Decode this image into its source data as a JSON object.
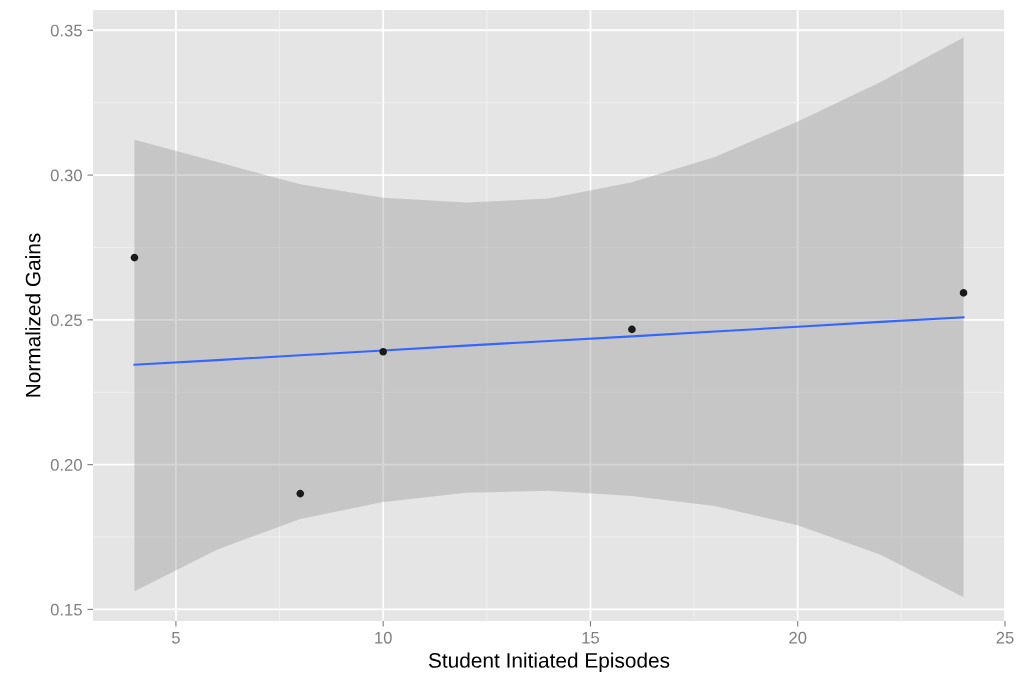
{
  "chart_data": {
    "type": "scatter",
    "xlabel": "Student Initiated Episodes",
    "ylabel": "Normalized Gains",
    "xlim": [
      3,
      25
    ],
    "ylim": [
      0.146,
      0.357
    ],
    "xticks": [
      5,
      10,
      15,
      20,
      25
    ],
    "yticks": [
      0.15,
      {
        "value": 0.2,
        "label": "0.20"
      },
      0.25,
      {
        "value": 0.3,
        "label": "0.30"
      },
      0.35
    ],
    "grid": true,
    "series": [
      {
        "marker": "circle",
        "color": "#1a1a1a",
        "x": [
          4,
          8,
          10,
          16,
          24
        ],
        "values": [
          0.2715,
          0.19,
          0.239,
          0.2467,
          0.2593
        ]
      },
      {
        "type": "line",
        "color": "#3366ff",
        "x": [
          4,
          6,
          8,
          10,
          12,
          14,
          16,
          18,
          20,
          22,
          24
        ],
        "values": [
          0.2345,
          0.2361,
          0.2378,
          0.2394,
          0.2411,
          0.2427,
          0.2443,
          0.246,
          0.2476,
          0.2493,
          0.2509
        ],
        "lower": [
          0.1563,
          0.1707,
          0.1812,
          0.1871,
          0.1903,
          0.191,
          0.1892,
          0.1857,
          0.1791,
          0.1689,
          0.1542
        ],
        "upper": [
          0.3122,
          0.3045,
          0.2968,
          0.2922,
          0.2905,
          0.2919,
          0.2975,
          0.3062,
          0.3185,
          0.3321,
          0.3475
        ]
      }
    ]
  }
}
